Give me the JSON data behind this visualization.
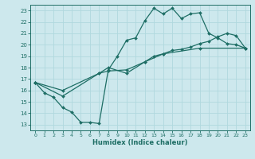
{
  "xlabel": "Humidex (Indice chaleur)",
  "bg_color": "#cde8ed",
  "grid_color": "#b0d8de",
  "line_color": "#1e6e65",
  "xlim": [
    -0.5,
    23.5
  ],
  "ylim": [
    12.5,
    23.5
  ],
  "yticks": [
    13,
    14,
    15,
    16,
    17,
    18,
    19,
    20,
    21,
    22,
    23
  ],
  "xticks": [
    0,
    1,
    2,
    3,
    4,
    5,
    6,
    7,
    8,
    9,
    10,
    11,
    12,
    13,
    14,
    15,
    16,
    17,
    18,
    19,
    20,
    21,
    22,
    23
  ],
  "series1_x": [
    0,
    1,
    2,
    3,
    4,
    5,
    6,
    7,
    8,
    9,
    10,
    11,
    12,
    13,
    14,
    15,
    16,
    17,
    18,
    19,
    20,
    21,
    22,
    23
  ],
  "series1_y": [
    16.7,
    15.8,
    15.4,
    14.5,
    14.1,
    13.2,
    13.2,
    13.1,
    17.8,
    19.0,
    20.4,
    20.6,
    22.1,
    23.2,
    22.7,
    23.2,
    22.3,
    22.7,
    22.8,
    21.0,
    20.6,
    20.1,
    20.0,
    19.7
  ],
  "series2_x": [
    0,
    3,
    7,
    8,
    10,
    12,
    13,
    14,
    15,
    16,
    17,
    18,
    19,
    20,
    21,
    22,
    23
  ],
  "series2_y": [
    16.7,
    16.0,
    17.5,
    17.7,
    17.8,
    18.5,
    19.0,
    19.2,
    19.5,
    19.6,
    19.8,
    20.1,
    20.3,
    20.7,
    21.0,
    20.8,
    19.7
  ],
  "series3_x": [
    0,
    3,
    7,
    8,
    10,
    12,
    14,
    18,
    23
  ],
  "series3_y": [
    16.7,
    15.5,
    17.5,
    18.0,
    17.5,
    18.5,
    19.2,
    19.7,
    19.7
  ]
}
